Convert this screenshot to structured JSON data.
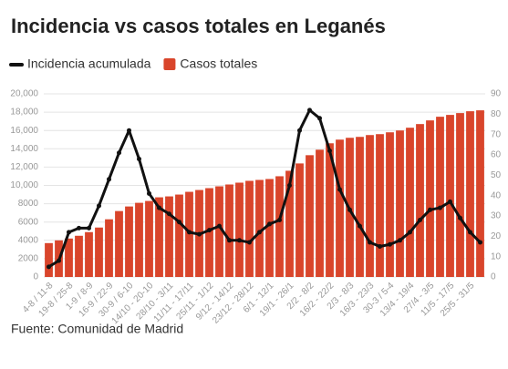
{
  "chart_data": {
    "type": "bar-line",
    "title": "Incidencia vs casos totales en Leganés",
    "source": "Fuente: Comunidad de Madrid",
    "categories": [
      "4-8 / 11-8",
      null,
      "19-8 / 25-8",
      null,
      "1-9 / 8-9",
      null,
      "16-9 / 22-9",
      null,
      "30-9 / 6-10",
      null,
      "14/10 - 20-10",
      null,
      "28/10 - 3/11",
      null,
      "11/11 - 17/11",
      null,
      "25/11 - 1/12",
      null,
      "9/12 - 14/12",
      null,
      "23/12 - 28/12",
      null,
      "6/1 - 12/1",
      null,
      "19/1 - 26/1",
      null,
      "2/2 - 8/2",
      null,
      "16/2 - 22/2",
      null,
      "2/3 - 8/3",
      null,
      "16/3 - 23/3",
      null,
      "30-3 / 5-4",
      null,
      "13/4 - 19/4",
      null,
      "27/4 - 3/5",
      null,
      "11/5 - 17/5",
      null,
      "25/5 - 31/5",
      null
    ],
    "series": [
      {
        "name": "Incidencia acumulada",
        "color": "#111111",
        "kind": "line",
        "axis": "y2",
        "values": [
          5,
          8,
          22,
          24,
          24,
          35,
          48,
          61,
          72,
          58,
          41,
          34,
          31,
          27,
          22,
          21,
          23,
          25,
          18,
          18,
          17,
          22,
          26,
          28,
          45,
          72,
          82,
          78,
          62,
          43,
          33,
          25,
          17,
          15,
          16,
          18,
          22,
          28,
          33,
          34,
          37,
          29,
          22,
          17
        ]
      },
      {
        "name": "Casos totales",
        "color": "#d9452b",
        "kind": "bar",
        "values": [
          3700,
          4000,
          4200,
          4500,
          4900,
          5400,
          6300,
          7200,
          7700,
          8100,
          8300,
          8700,
          8800,
          9000,
          9300,
          9500,
          9700,
          9900,
          10100,
          10300,
          10500,
          10600,
          10700,
          11000,
          11600,
          12400,
          13300,
          13900,
          14600,
          15000,
          15200,
          15300,
          15500,
          15600,
          15800,
          16000,
          16300,
          16700,
          17100,
          17500,
          17700,
          17900,
          18100,
          18200
        ]
      }
    ],
    "ylim": [
      0,
      20000
    ],
    "yticks": [
      0,
      2000,
      4000,
      6000,
      8000,
      {
        "value": 10000,
        "label": "10,000"
      },
      {
        "value": 12000,
        "label": "12,000"
      },
      {
        "value": 14000,
        "label": "14,000"
      },
      {
        "value": 16000,
        "label": "16,000"
      },
      {
        "value": 18000,
        "label": "18,000"
      },
      {
        "value": 20000,
        "label": "20,000"
      }
    ],
    "y2lim": [
      0,
      90
    ],
    "y2ticks": [
      0,
      10,
      20,
      30,
      40,
      50,
      60,
      70,
      80,
      90
    ],
    "grid": true
  }
}
